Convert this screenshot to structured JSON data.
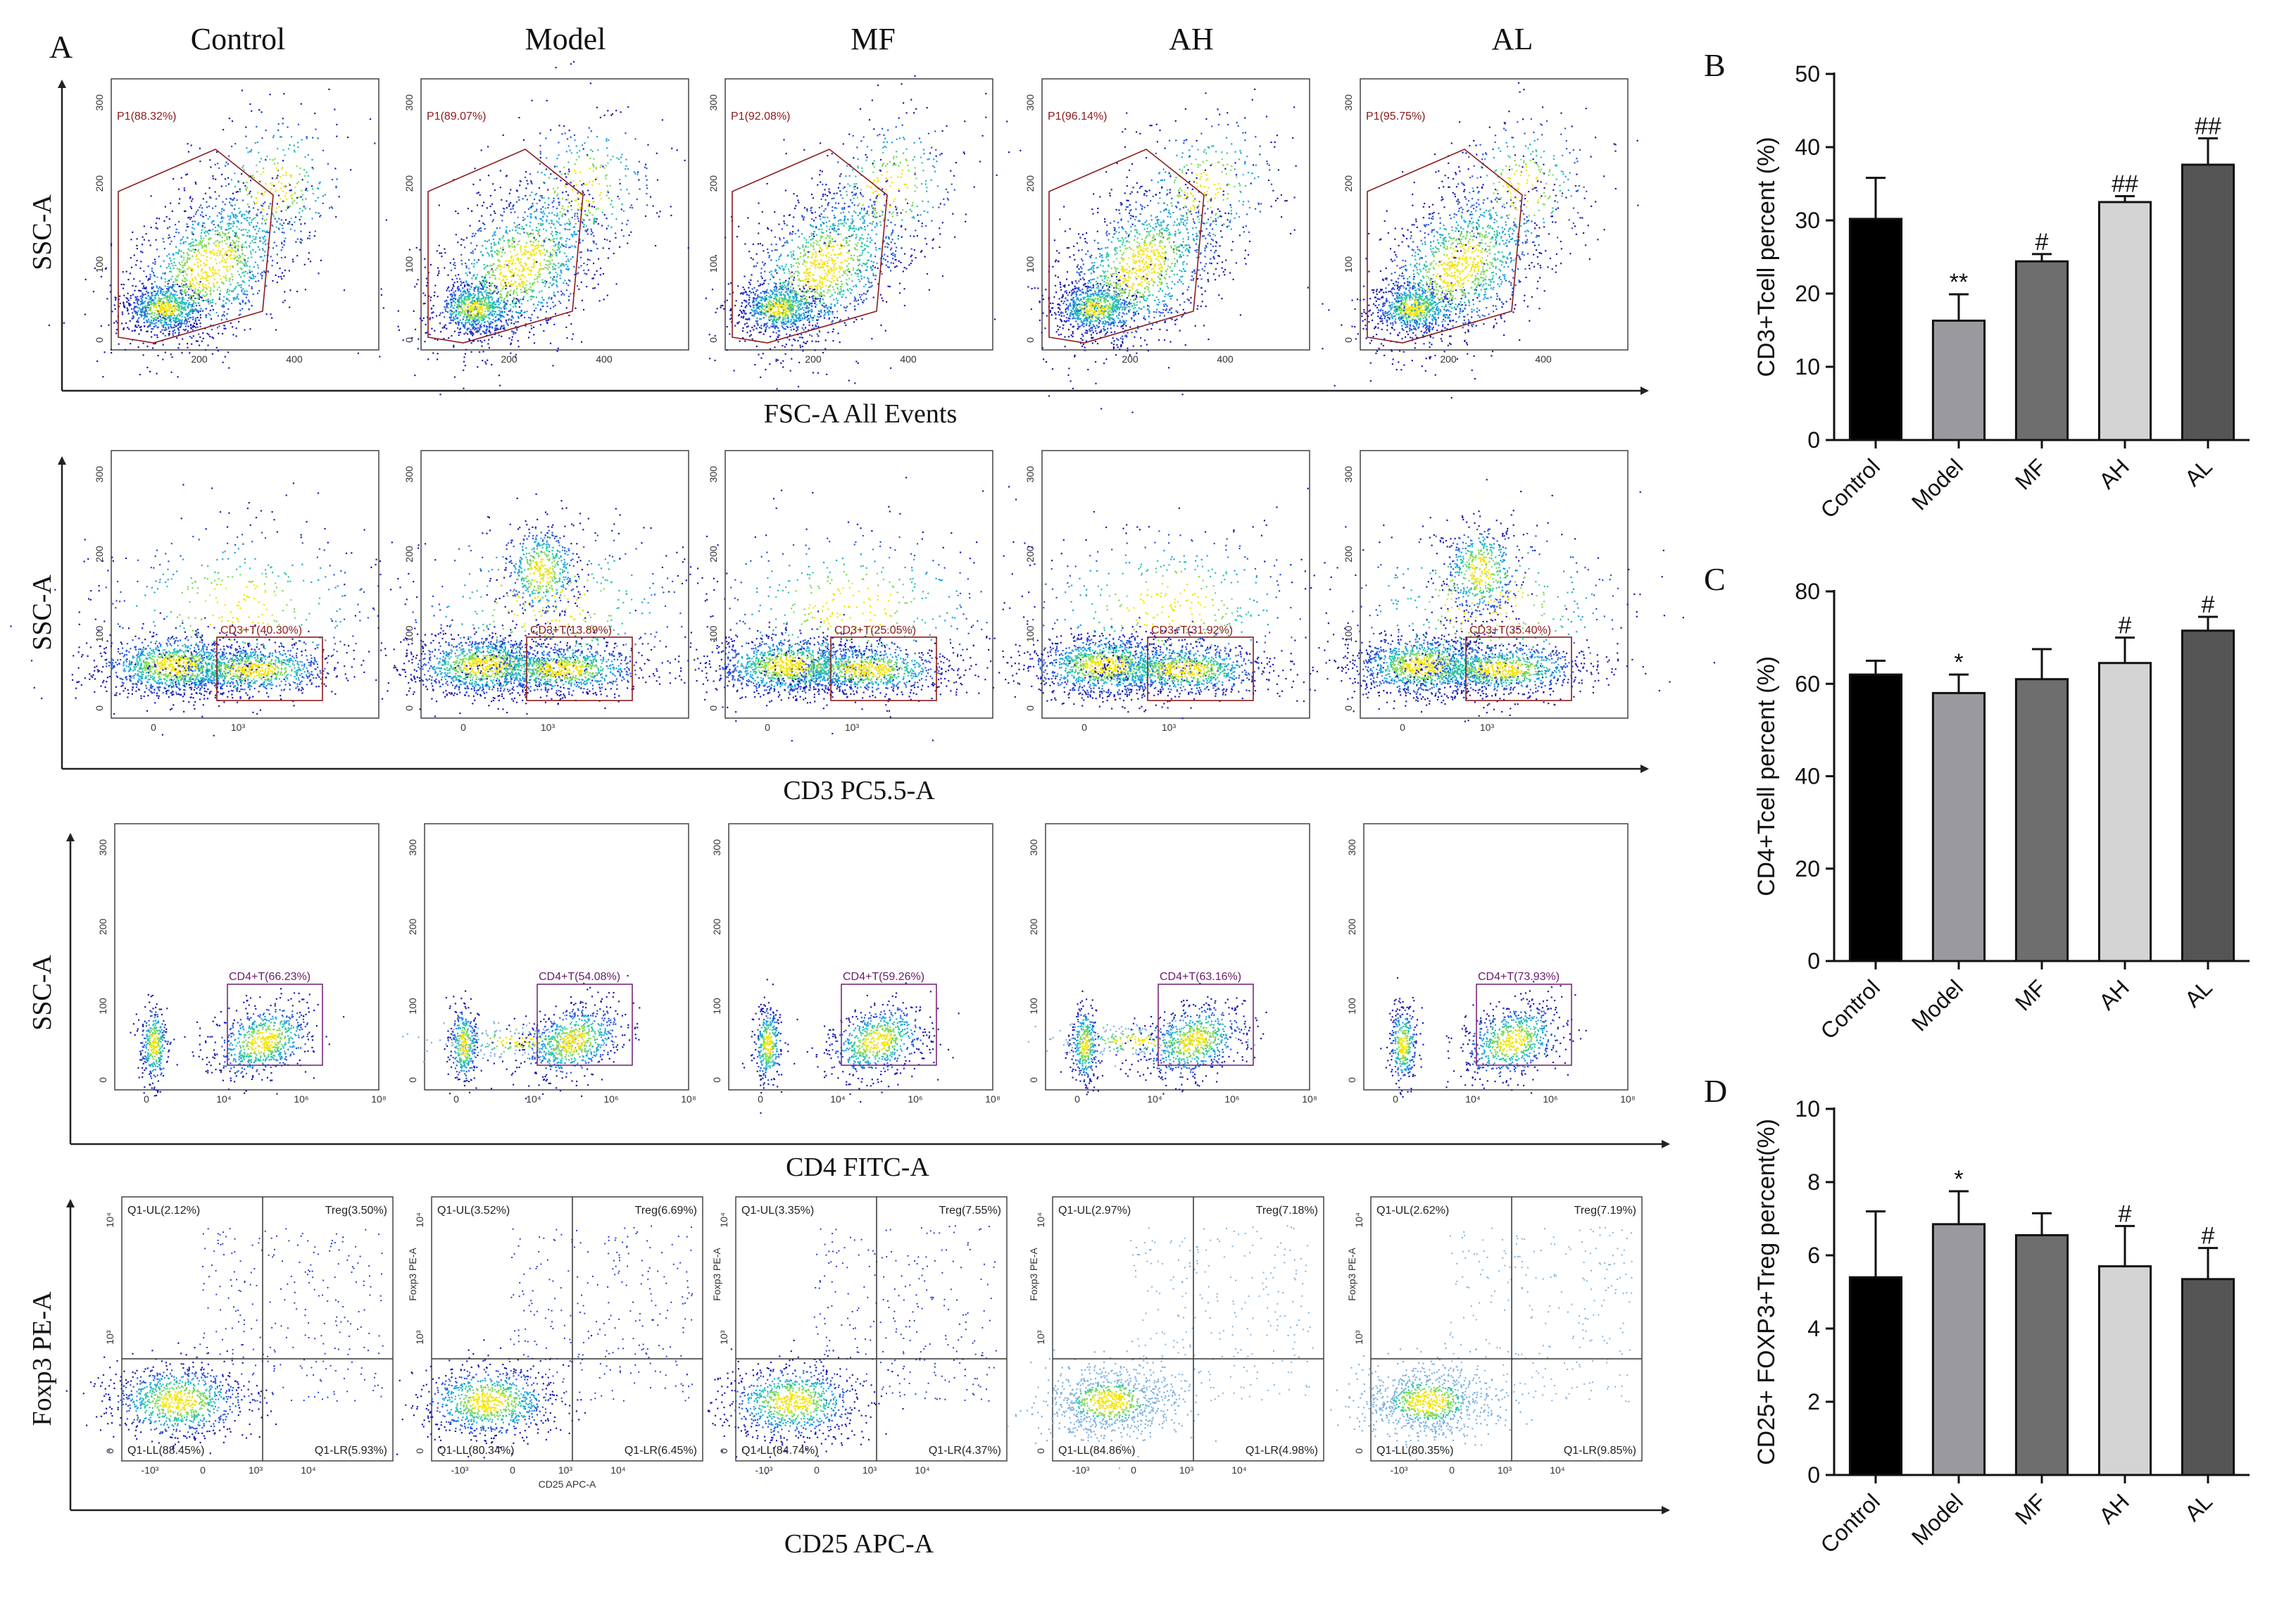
{
  "panel_labels": {
    "a": "A",
    "b": "B",
    "c": "C",
    "d": "D"
  },
  "groups": [
    "Control",
    "Model",
    "MF",
    "AH",
    "AL"
  ],
  "rows": [
    {
      "y_label": "SSC-A",
      "x_label": "FSC-A  All Events",
      "gates": [
        "P1(88.32%)",
        "P1(89.07%)",
        "P1(92.08%)",
        "P1(96.14%)",
        "P1(95.75%)"
      ]
    },
    {
      "y_label": "SSC-A",
      "x_label": "CD3 PC5.5-A",
      "gates": [
        "CD3+T(40.30%)",
        "CD3+T(13.89%)",
        "CD3+T(25.05%)",
        "CD3+T(31.92%)",
        "CD3+T(35.40%)"
      ]
    },
    {
      "y_label": "SSC-A",
      "x_label": "CD4 FITC-A",
      "gates": [
        "CD4+T(66.23%)",
        "CD4+T(54.08%)",
        "CD4+T(59.26%)",
        "CD4+T(63.16%)",
        "CD4+T(73.93%)"
      ]
    },
    {
      "y_label": "Foxp3 PE-A",
      "x_label": "CD25 APC-A",
      "quadrants": [
        {
          "ul": "Q1-UL(2.12%)",
          "ur": "Treg(3.50%)",
          "ll": "Q1-LL(88.45%)",
          "lr": "Q1-LR(5.93%)"
        },
        {
          "ul": "Q1-UL(3.52%)",
          "ur": "Treg(6.69%)",
          "ll": "Q1-LL(80.34%)",
          "lr": "Q1-LR(6.45%)"
        },
        {
          "ul": "Q1-UL(3.35%)",
          "ur": "Treg(7.55%)",
          "ll": "Q1-LL(84.74%)",
          "lr": "Q1-LR(4.37%)"
        },
        {
          "ul": "Q1-UL(2.97%)",
          "ur": "Treg(7.18%)",
          "ll": "Q1-LL(84.86%)",
          "lr": "Q1-LR(4.98%)"
        },
        {
          "ul": "Q1-UL(2.62%)",
          "ur": "Treg(7.19%)",
          "ll": "Q1-LL(80.35%)",
          "lr": "Q1-LR(9.85%)"
        }
      ]
    }
  ],
  "scatter_ticks": {
    "row1_y": [
      "0",
      "100",
      "200",
      "300"
    ],
    "row1_x": [
      "200",
      "400"
    ],
    "row2_x": [
      "0",
      "10³"
    ],
    "row3_x": [
      "0",
      "10⁴",
      "10⁶",
      "10⁸"
    ],
    "row4_y": [
      "0",
      "10³",
      "10⁴"
    ],
    "row4_x": [
      "-10³",
      "0",
      "10³",
      "10⁴"
    ],
    "inner_y": "Foxp3 PE-A",
    "inner_x": "CD25 APC-A"
  },
  "colors": {
    "control": "#000000",
    "model": "#9a9a9e",
    "mf": "#6e6e6e",
    "ah": "#d4d4d4",
    "al": "#555555"
  },
  "chart_data": [
    {
      "type": "bar",
      "panel": "B",
      "categories": [
        "Control",
        "Model",
        "MF",
        "AH",
        "AL"
      ],
      "values": [
        30.2,
        16.3,
        24.4,
        32.5,
        37.6
      ],
      "errors": [
        5.6,
        3.6,
        1.0,
        0.8,
        3.6
      ],
      "significance": [
        "",
        "**",
        "#",
        "##",
        "##"
      ],
      "ylabel": "CD3+Tcell percent (%)",
      "ylim": [
        0,
        50
      ],
      "yticks": [
        0,
        10,
        20,
        30,
        40,
        50
      ]
    },
    {
      "type": "bar",
      "panel": "C",
      "categories": [
        "Control",
        "Model",
        "MF",
        "AH",
        "AL"
      ],
      "values": [
        62.0,
        58.0,
        61.0,
        64.5,
        71.5
      ],
      "errors": [
        3.0,
        4.0,
        6.5,
        5.5,
        3.0
      ],
      "significance": [
        "",
        "*",
        "",
        "#",
        "#"
      ],
      "ylabel": "CD4+Tcell percent (%)",
      "ylim": [
        0,
        80
      ],
      "yticks": [
        0,
        20,
        40,
        60,
        80
      ]
    },
    {
      "type": "bar",
      "panel": "D",
      "categories": [
        "Control",
        "Model",
        "MF",
        "AH",
        "AL"
      ],
      "values": [
        5.4,
        6.85,
        6.55,
        5.7,
        5.35
      ],
      "errors": [
        1.8,
        0.9,
        0.6,
        1.1,
        0.85
      ],
      "significance": [
        "",
        "*",
        "",
        "#",
        "#"
      ],
      "ylabel": "CD25+ FOXP3+Treg percent(%)",
      "ylim": [
        0,
        10
      ],
      "yticks": [
        0,
        2,
        4,
        6,
        8,
        10
      ]
    }
  ]
}
